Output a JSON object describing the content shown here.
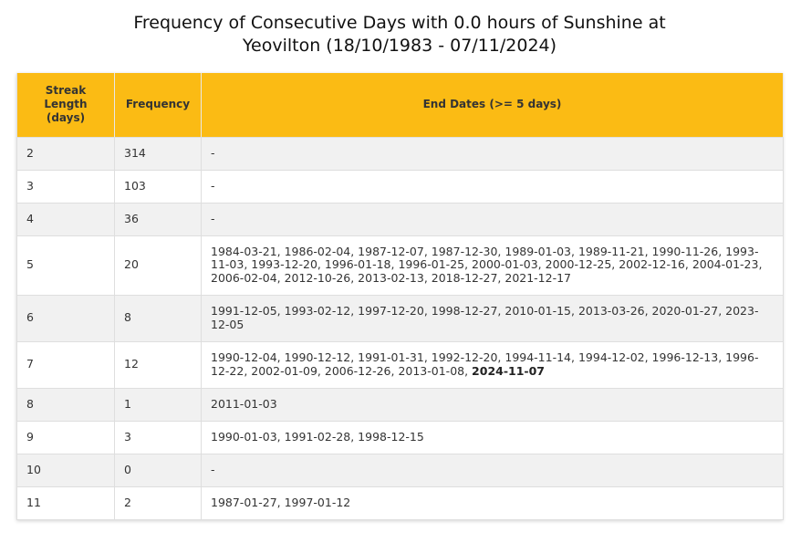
{
  "title_line1": "Frequency of Consecutive Days with 0.0 hours of Sunshine at",
  "title_line2": "Yeovilton (18/10/1983 - 07/11/2024)",
  "columns": [
    "Streak Length (days)",
    "Frequency",
    "End Dates (>= 5 days)"
  ],
  "column_header_lines": {
    "streak_1": "Streak",
    "streak_2": "Length",
    "streak_3": "(days)"
  },
  "header_color": "#fbbb14",
  "rows": [
    {
      "streak": "2",
      "frequency": "314",
      "dates": "-",
      "latest": ""
    },
    {
      "streak": "3",
      "frequency": "103",
      "dates": "-",
      "latest": ""
    },
    {
      "streak": "4",
      "frequency": "36",
      "dates": "-",
      "latest": ""
    },
    {
      "streak": "5",
      "frequency": "20",
      "dates": "1984-03-21, 1986-02-04, 1987-12-07, 1987-12-30, 1989-01-03, 1989-11-21, 1990-11-26, 1993-11-03, 1993-12-20, 1996-01-18, 1996-01-25, 2000-01-03, 2000-12-25, 2002-12-16, 2004-01-23, 2006-02-04, 2012-10-26, 2013-02-13, 2018-12-27, 2021-12-17",
      "latest": ""
    },
    {
      "streak": "6",
      "frequency": "8",
      "dates": "1991-12-05, 1993-02-12, 1997-12-20, 1998-12-27, 2010-01-15, 2013-03-26, 2020-01-27, 2023-12-05",
      "latest": ""
    },
    {
      "streak": "7",
      "frequency": "12",
      "dates": "1990-12-04, 1990-12-12, 1991-01-31, 1992-12-20, 1994-11-14, 1994-12-02, 1996-12-13, 1996-12-22, 2002-01-09, 2006-12-26, 2013-01-08, ",
      "latest": "2024-11-07"
    },
    {
      "streak": "8",
      "frequency": "1",
      "dates": "2011-01-03",
      "latest": ""
    },
    {
      "streak": "9",
      "frequency": "3",
      "dates": "1990-01-03, 1991-02-28, 1998-12-15",
      "latest": ""
    },
    {
      "streak": "10",
      "frequency": "0",
      "dates": "-",
      "latest": ""
    },
    {
      "streak": "11",
      "frequency": "2",
      "dates": "1987-01-27, 1997-01-12",
      "latest": ""
    }
  ]
}
